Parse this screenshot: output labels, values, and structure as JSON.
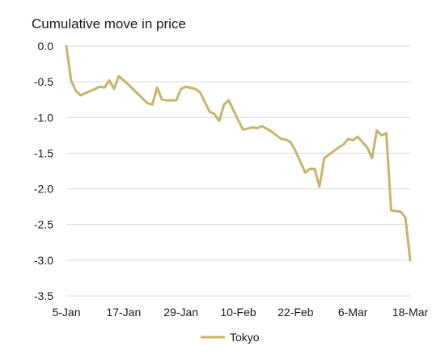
{
  "chart_data": {
    "type": "line",
    "title": "Cumulative move in price",
    "xlabel": "",
    "ylabel": "",
    "ylim": [
      -3.5,
      0.0
    ],
    "y_ticks": [
      0.0,
      -0.5,
      -1.0,
      -1.5,
      -2.0,
      -2.5,
      -3.0,
      -3.5
    ],
    "y_tick_labels": [
      "0.0",
      "-0.5",
      "-1.0",
      "-1.5",
      "-2.0",
      "-2.5",
      "-3.0",
      "-3.5"
    ],
    "x_range": [
      "2021-01-05",
      "2021-03-18"
    ],
    "x_ticks": [
      "2021-01-05",
      "2021-01-17",
      "2021-01-29",
      "2021-02-10",
      "2021-02-22",
      "2021-03-06",
      "2021-03-18"
    ],
    "x_tick_labels": [
      "5-Jan",
      "17-Jan",
      "29-Jan",
      "10-Feb",
      "22-Feb",
      "6-Mar",
      "18-Mar"
    ],
    "grid": "horizontal",
    "legend_position": "bottom-center",
    "series": [
      {
        "name": "Tokyo",
        "color": "#c8b46a",
        "points": [
          [
            "2021-01-05",
            0.0
          ],
          [
            "2021-01-06",
            -0.48
          ],
          [
            "2021-01-07",
            -0.63
          ],
          [
            "2021-01-08",
            -0.69
          ],
          [
            "2021-01-10",
            -0.63
          ],
          [
            "2021-01-11",
            -0.6
          ],
          [
            "2021-01-12",
            -0.57
          ],
          [
            "2021-01-13",
            -0.58
          ],
          [
            "2021-01-14",
            -0.48
          ],
          [
            "2021-01-15",
            -0.6
          ],
          [
            "2021-01-16",
            -0.42
          ],
          [
            "2021-01-18",
            -0.54
          ],
          [
            "2021-01-20",
            -0.67
          ],
          [
            "2021-01-22",
            -0.8
          ],
          [
            "2021-01-23",
            -0.82
          ],
          [
            "2021-01-24",
            -0.58
          ],
          [
            "2021-01-25",
            -0.75
          ],
          [
            "2021-01-26",
            -0.76
          ],
          [
            "2021-01-28",
            -0.76
          ],
          [
            "2021-01-29",
            -0.6
          ],
          [
            "2021-01-30",
            -0.57
          ],
          [
            "2021-02-01",
            -0.6
          ],
          [
            "2021-02-02",
            -0.65
          ],
          [
            "2021-02-04",
            -0.92
          ],
          [
            "2021-02-05",
            -0.95
          ],
          [
            "2021-02-06",
            -1.05
          ],
          [
            "2021-02-07",
            -0.82
          ],
          [
            "2021-02-08",
            -0.76
          ],
          [
            "2021-02-10",
            -1.04
          ],
          [
            "2021-02-11",
            -1.17
          ],
          [
            "2021-02-13",
            -1.14
          ],
          [
            "2021-02-14",
            -1.15
          ],
          [
            "2021-02-15",
            -1.12
          ],
          [
            "2021-02-17",
            -1.2
          ],
          [
            "2021-02-19",
            -1.3
          ],
          [
            "2021-02-20",
            -1.31
          ],
          [
            "2021-02-21",
            -1.35
          ],
          [
            "2021-02-22",
            -1.47
          ],
          [
            "2021-02-23",
            -1.62
          ],
          [
            "2021-02-24",
            -1.77
          ],
          [
            "2021-02-25",
            -1.72
          ],
          [
            "2021-02-26",
            -1.72
          ],
          [
            "2021-02-27",
            -1.97
          ],
          [
            "2021-02-28",
            -1.57
          ],
          [
            "2021-03-01",
            -1.52
          ],
          [
            "2021-03-02",
            -1.47
          ],
          [
            "2021-03-03",
            -1.42
          ],
          [
            "2021-03-04",
            -1.38
          ],
          [
            "2021-03-05",
            -1.3
          ],
          [
            "2021-03-06",
            -1.32
          ],
          [
            "2021-03-07",
            -1.27
          ],
          [
            "2021-03-09",
            -1.42
          ],
          [
            "2021-03-10",
            -1.57
          ],
          [
            "2021-03-11",
            -1.18
          ],
          [
            "2021-03-12",
            -1.25
          ],
          [
            "2021-03-13",
            -1.22
          ],
          [
            "2021-03-14",
            -2.3
          ],
          [
            "2021-03-16",
            -2.32
          ],
          [
            "2021-03-17",
            -2.4
          ],
          [
            "2021-03-18",
            -3.0
          ]
        ]
      }
    ]
  }
}
